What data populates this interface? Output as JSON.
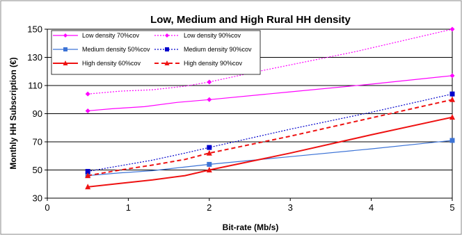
{
  "chart_data": {
    "type": "line",
    "title": "Low, Medium and High Rural HH density",
    "xlabel": "Bit-rate (Mb/s)",
    "ylabel": "Monthly HH Subscription (€)",
    "xlim": [
      0,
      5
    ],
    "ylim": [
      30,
      150
    ],
    "x_ticks": [
      0,
      1,
      2,
      3,
      4,
      5
    ],
    "y_ticks": [
      30,
      50,
      70,
      90,
      110,
      130,
      150
    ],
    "grid": "horizontal",
    "legend_position": "top-left",
    "series": [
      {
        "name": "Low density 70%cov",
        "color": "#ff00ff",
        "dash": "solid",
        "marker": "diamond",
        "x": [
          0.5,
          2,
          5
        ],
        "y": [
          92,
          100,
          117
        ],
        "smooth": [
          [
            0.5,
            92
          ],
          [
            0.8,
            93.5
          ],
          [
            1.2,
            95
          ],
          [
            1.6,
            98
          ],
          [
            2,
            100
          ],
          [
            3,
            105.5
          ],
          [
            4,
            111
          ],
          [
            5,
            117
          ]
        ]
      },
      {
        "name": "Low density 90%cov",
        "color": "#ff00ff",
        "dash": "dotted",
        "marker": "diamond",
        "x": [
          0.5,
          2,
          5
        ],
        "y": [
          104,
          112.5,
          150
        ],
        "smooth": [
          [
            0.5,
            104
          ],
          [
            0.9,
            106
          ],
          [
            1.3,
            107
          ],
          [
            1.7,
            109.5
          ],
          [
            2,
            112.5
          ],
          [
            2.6,
            120
          ],
          [
            3.2,
            127
          ],
          [
            3.8,
            134
          ],
          [
            4.4,
            142
          ],
          [
            5,
            150
          ]
        ]
      },
      {
        "name": "Medium density 50%cov",
        "color": "#3c73d6",
        "dash": "solid",
        "marker": "square",
        "x": [
          0.5,
          2,
          5
        ],
        "y": [
          46,
          54,
          71
        ],
        "smooth": [
          [
            0.5,
            46
          ],
          [
            0.9,
            48
          ],
          [
            1.3,
            49.5
          ],
          [
            1.6,
            51.5
          ],
          [
            2,
            54
          ],
          [
            3,
            59.5
          ],
          [
            4,
            65
          ],
          [
            5,
            71
          ]
        ]
      },
      {
        "name": "Medium density 90%cov",
        "color": "#0000cc",
        "dash": "dotted",
        "marker": "square",
        "x": [
          0.5,
          2,
          5
        ],
        "y": [
          49,
          66,
          104
        ],
        "smooth": [
          [
            0.5,
            49
          ],
          [
            0.9,
            53
          ],
          [
            1.3,
            57
          ],
          [
            1.7,
            62
          ],
          [
            2,
            66
          ],
          [
            3,
            79
          ],
          [
            4,
            91
          ],
          [
            5,
            104
          ]
        ]
      },
      {
        "name": "High density 60%cov",
        "color": "#ee1111",
        "dash": "solid",
        "marker": "triangle",
        "x": [
          0.5,
          2,
          5
        ],
        "y": [
          38,
          50,
          87.5
        ],
        "smooth": [
          [
            0.5,
            38
          ],
          [
            0.9,
            40.5
          ],
          [
            1.3,
            43
          ],
          [
            1.7,
            46
          ],
          [
            2,
            50
          ],
          [
            3,
            62
          ],
          [
            4,
            75
          ],
          [
            5,
            87.5
          ]
        ]
      },
      {
        "name": "High density 90%cov",
        "color": "#ee1111",
        "dash": "dashed",
        "marker": "triangle",
        "x": [
          0.5,
          2,
          5
        ],
        "y": [
          46,
          62,
          100
        ],
        "smooth": [
          [
            0.5,
            46
          ],
          [
            0.9,
            50
          ],
          [
            1.3,
            53.5
          ],
          [
            1.7,
            57.5
          ],
          [
            2,
            62
          ],
          [
            3,
            74
          ],
          [
            4,
            87
          ],
          [
            5,
            100
          ]
        ]
      }
    ]
  }
}
